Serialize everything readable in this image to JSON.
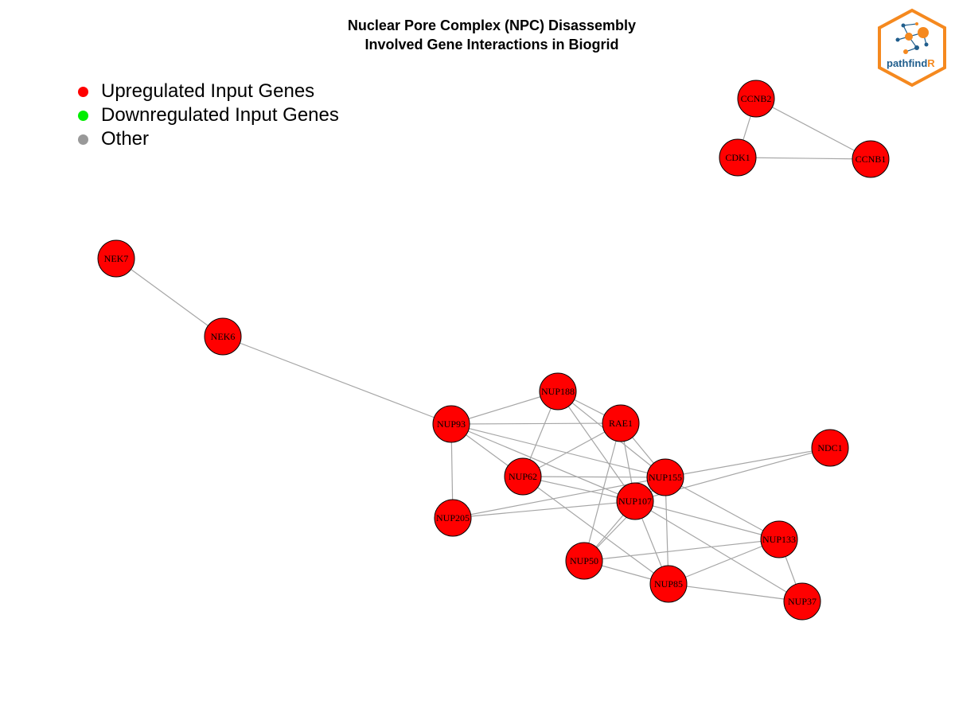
{
  "title": {
    "line1": "Nuclear Pore Complex (NPC) Disassembly",
    "line2": "Involved Gene Interactions in Biogrid"
  },
  "legend": {
    "items": [
      {
        "label": "Upregulated Input Genes",
        "color": "#FF0000"
      },
      {
        "label": "Downregulated Input Genes",
        "color": "#00EE00"
      },
      {
        "label": "Other",
        "color": "#999999"
      }
    ]
  },
  "logo": {
    "text_main": "pathfind",
    "text_accent": "R",
    "border_color": "#F5891F",
    "accent_color": "#F5891F",
    "text_color": "#1F5D8C"
  },
  "colors": {
    "node_fill": "#FF0000",
    "node_stroke": "#000000",
    "edge": "#A6A6A6"
  },
  "graph": {
    "nodes": [
      {
        "id": "CCNB2",
        "group": "upregulated"
      },
      {
        "id": "CDK1",
        "group": "upregulated"
      },
      {
        "id": "CCNB1",
        "group": "upregulated"
      },
      {
        "id": "NEK7",
        "group": "upregulated"
      },
      {
        "id": "NEK6",
        "group": "upregulated"
      },
      {
        "id": "NUP188",
        "group": "upregulated"
      },
      {
        "id": "NUP93",
        "group": "upregulated"
      },
      {
        "id": "RAE1",
        "group": "upregulated"
      },
      {
        "id": "NDC1",
        "group": "upregulated"
      },
      {
        "id": "NUP62",
        "group": "upregulated"
      },
      {
        "id": "NUP155",
        "group": "upregulated"
      },
      {
        "id": "NUP107",
        "group": "upregulated"
      },
      {
        "id": "NUP205",
        "group": "upregulated"
      },
      {
        "id": "NUP133",
        "group": "upregulated"
      },
      {
        "id": "NUP50",
        "group": "upregulated"
      },
      {
        "id": "NUP85",
        "group": "upregulated"
      },
      {
        "id": "NUP37",
        "group": "upregulated"
      }
    ],
    "edges": [
      [
        "CCNB2",
        "CDK1"
      ],
      [
        "CCNB2",
        "CCNB1"
      ],
      [
        "CDK1",
        "CCNB1"
      ],
      [
        "NEK7",
        "NEK6"
      ],
      [
        "NEK6",
        "NUP93"
      ],
      [
        "NUP93",
        "NUP188"
      ],
      [
        "NUP93",
        "RAE1"
      ],
      [
        "NUP93",
        "NUP62"
      ],
      [
        "NUP93",
        "NUP205"
      ],
      [
        "NUP93",
        "NUP155"
      ],
      [
        "NUP93",
        "NUP107"
      ],
      [
        "NUP188",
        "RAE1"
      ],
      [
        "NUP188",
        "NUP62"
      ],
      [
        "NUP188",
        "NUP155"
      ],
      [
        "NUP188",
        "NUP107"
      ],
      [
        "RAE1",
        "NUP62"
      ],
      [
        "RAE1",
        "NUP155"
      ],
      [
        "RAE1",
        "NUP107"
      ],
      [
        "RAE1",
        "NUP50"
      ],
      [
        "NUP62",
        "NUP155"
      ],
      [
        "NUP62",
        "NUP107"
      ],
      [
        "NUP62",
        "NUP85"
      ],
      [
        "NUP205",
        "NUP155"
      ],
      [
        "NUP205",
        "NUP107"
      ],
      [
        "NDC1",
        "NUP155"
      ],
      [
        "NDC1",
        "NUP107"
      ],
      [
        "NUP155",
        "NUP107"
      ],
      [
        "NUP155",
        "NUP133"
      ],
      [
        "NUP155",
        "NUP50"
      ],
      [
        "NUP155",
        "NUP85"
      ],
      [
        "NUP107",
        "NUP133"
      ],
      [
        "NUP107",
        "NUP50"
      ],
      [
        "NUP107",
        "NUP85"
      ],
      [
        "NUP107",
        "NUP37"
      ],
      [
        "NUP133",
        "NUP50"
      ],
      [
        "NUP133",
        "NUP85"
      ],
      [
        "NUP133",
        "NUP37"
      ],
      [
        "NUP50",
        "NUP85"
      ],
      [
        "NUP85",
        "NUP37"
      ]
    ]
  }
}
